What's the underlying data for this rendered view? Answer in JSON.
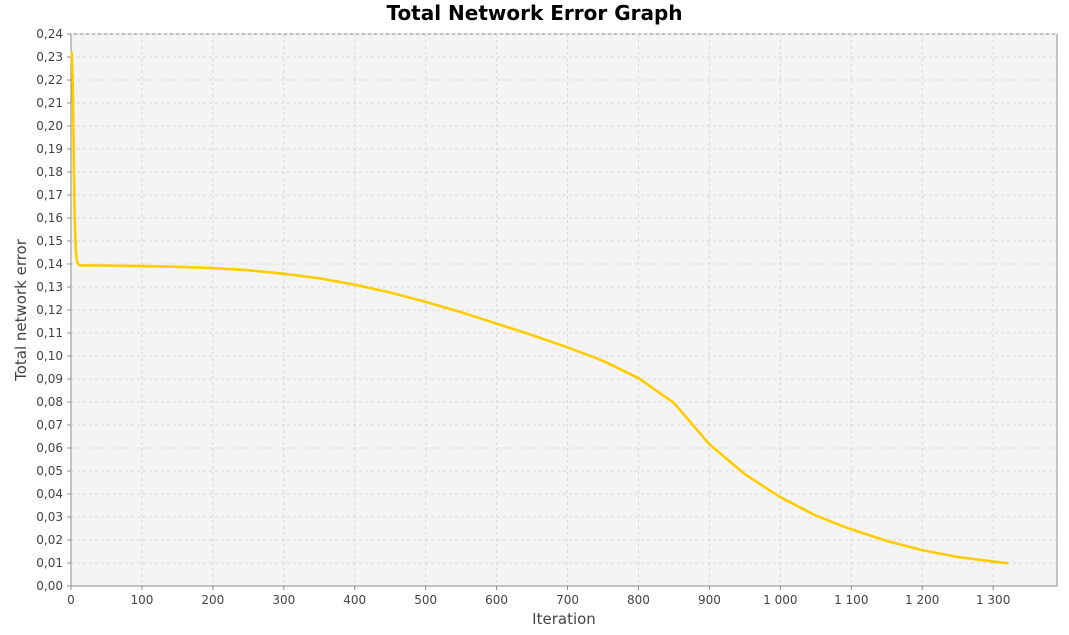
{
  "chart_data": {
    "type": "line",
    "title": "Total Network Error Graph",
    "xlabel": "Iteration",
    "ylabel": "Total network error",
    "xlim": [
      0,
      1390
    ],
    "ylim": [
      0,
      0.24
    ],
    "grid": true,
    "legend": "none",
    "x_ticks": [
      {
        "value": 0,
        "label": "0"
      },
      {
        "value": 100,
        "label": "100"
      },
      {
        "value": 200,
        "label": "200"
      },
      {
        "value": 300,
        "label": "300"
      },
      {
        "value": 400,
        "label": "400"
      },
      {
        "value": 500,
        "label": "500"
      },
      {
        "value": 600,
        "label": "600"
      },
      {
        "value": 700,
        "label": "700"
      },
      {
        "value": 800,
        "label": "800"
      },
      {
        "value": 900,
        "label": "900"
      },
      {
        "value": 1000,
        "label": "1 000"
      },
      {
        "value": 1100,
        "label": "1 100"
      },
      {
        "value": 1200,
        "label": "1 200"
      },
      {
        "value": 1300,
        "label": "1 300"
      }
    ],
    "y_ticks": [
      {
        "value": 0.0,
        "label": "0,00"
      },
      {
        "value": 0.01,
        "label": "0,01"
      },
      {
        "value": 0.02,
        "label": "0,02"
      },
      {
        "value": 0.03,
        "label": "0,03"
      },
      {
        "value": 0.04,
        "label": "0,04"
      },
      {
        "value": 0.05,
        "label": "0,05"
      },
      {
        "value": 0.06,
        "label": "0,06"
      },
      {
        "value": 0.07,
        "label": "0,07"
      },
      {
        "value": 0.08,
        "label": "0,08"
      },
      {
        "value": 0.09,
        "label": "0,09"
      },
      {
        "value": 0.1,
        "label": "0,10"
      },
      {
        "value": 0.11,
        "label": "0,11"
      },
      {
        "value": 0.12,
        "label": "0,12"
      },
      {
        "value": 0.13,
        "label": "0,13"
      },
      {
        "value": 0.14,
        "label": "0,14"
      },
      {
        "value": 0.15,
        "label": "0,15"
      },
      {
        "value": 0.16,
        "label": "0,16"
      },
      {
        "value": 0.17,
        "label": "0,17"
      },
      {
        "value": 0.18,
        "label": "0,18"
      },
      {
        "value": 0.19,
        "label": "0,19"
      },
      {
        "value": 0.2,
        "label": "0,20"
      },
      {
        "value": 0.21,
        "label": "0,21"
      },
      {
        "value": 0.22,
        "label": "0,22"
      },
      {
        "value": 0.23,
        "label": "0,23"
      },
      {
        "value": 0.24,
        "label": "0,24"
      }
    ],
    "series": [
      {
        "color": "#ffcc00",
        "x": [
          1,
          2,
          3,
          4,
          5,
          6,
          7,
          8,
          9,
          10,
          12,
          15,
          20,
          30,
          50,
          100,
          150,
          200,
          250,
          300,
          350,
          400,
          450,
          500,
          550,
          600,
          650,
          700,
          750,
          800,
          850,
          900,
          950,
          1000,
          1050,
          1100,
          1150,
          1200,
          1250,
          1300,
          1320
        ],
        "y": [
          0.232,
          0.225,
          0.21,
          0.185,
          0.165,
          0.152,
          0.145,
          0.142,
          0.1405,
          0.14,
          0.1395,
          0.1394,
          0.1394,
          0.1394,
          0.1393,
          0.1391,
          0.1388,
          0.1382,
          0.1373,
          0.1358,
          0.1338,
          0.131,
          0.1276,
          0.1235,
          0.119,
          0.1141,
          0.1091,
          0.1038,
          0.0979,
          0.0904,
          0.0796,
          0.0616,
          0.0486,
          0.0386,
          0.0306,
          0.0246,
          0.0196,
          0.0156,
          0.0126,
          0.0106,
          0.0099
        ]
      }
    ]
  }
}
